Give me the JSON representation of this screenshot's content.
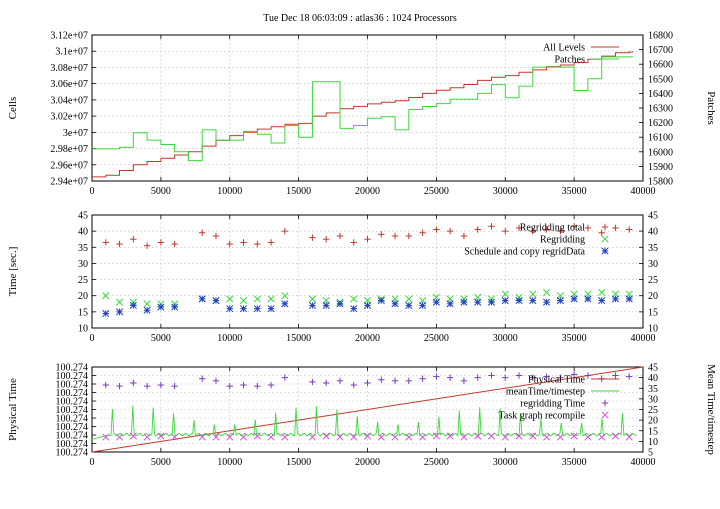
{
  "title": "Tue Dec 18 06:03:09 : atlas36 : 1024 Processors",
  "colors": {
    "red": "#c0392b",
    "green": "#3bd93b",
    "blue": "#1f3fbf",
    "purple": "#7a3fbf",
    "magenta": "#d84fd8",
    "lightgreen": "#7fe07f"
  },
  "chart_data": [
    {
      "type": "line",
      "xlim": [
        0,
        40000
      ],
      "xticks": [
        0,
        5000,
        10000,
        15000,
        20000,
        25000,
        30000,
        35000,
        40000
      ],
      "ylabel": "Cells",
      "ylim": [
        29400000,
        31200000
      ],
      "yticks": [
        29400000,
        29600000,
        29800000,
        30000000,
        30200000,
        30400000,
        30600000,
        30800000,
        31000000,
        31200000
      ],
      "ytick_labels": [
        "2.94e+07",
        "2.96e+07",
        "2.98e+07",
        "3e+07",
        "3.02e+07",
        "3.04e+07",
        "3.06e+07",
        "3.08e+07",
        "3.1e+07",
        "3.12e+07"
      ],
      "y2label": "Patches",
      "y2lim": [
        15800,
        16800
      ],
      "y2ticks": [
        15800,
        15900,
        16000,
        16100,
        16200,
        16300,
        16400,
        16500,
        16600,
        16700,
        16800
      ],
      "legend": "top-right",
      "series": [
        {
          "name": "All Levels",
          "axis": "y",
          "color": "#c0392b",
          "step": true,
          "x": [
            0,
            1000,
            2000,
            3000,
            4000,
            5000,
            6000,
            7000,
            8000,
            9000,
            10000,
            11000,
            12000,
            13000,
            14000,
            15000,
            16000,
            17000,
            18000,
            19000,
            20000,
            21000,
            22000,
            23000,
            24000,
            25000,
            26000,
            27000,
            28000,
            29000,
            30000,
            31000,
            32000,
            33000,
            34000,
            35000,
            36000,
            37000,
            38000,
            39000
          ],
          "y": [
            29450000,
            29470000,
            29530000,
            29600000,
            29640000,
            29680000,
            29720000,
            29760000,
            29830000,
            29900000,
            29960000,
            30000000,
            30040000,
            30070000,
            30100000,
            30110000,
            30200000,
            30240000,
            30290000,
            30320000,
            30350000,
            30370000,
            30390000,
            30430000,
            30480000,
            30520000,
            30550000,
            30590000,
            30640000,
            30680000,
            30700000,
            30740000,
            30770000,
            30810000,
            30830000,
            30860000,
            30900000,
            30940000,
            30980000,
            30990000
          ]
        },
        {
          "name": "Patches",
          "axis": "y2",
          "color": "#3bd93b",
          "step": true,
          "x": [
            0,
            1000,
            2000,
            3000,
            4000,
            5000,
            6000,
            7000,
            8000,
            9000,
            10000,
            11000,
            12000,
            13000,
            14000,
            15000,
            16000,
            17000,
            18000,
            19000,
            20000,
            21000,
            22000,
            23000,
            24000,
            25000,
            26000,
            27000,
            28000,
            29000,
            30000,
            31000,
            32000,
            33000,
            34000,
            35000,
            36000,
            37000,
            38000,
            39000
          ],
          "y": [
            16020,
            16020,
            16030,
            16130,
            16080,
            16050,
            16000,
            15940,
            16150,
            16080,
            16080,
            16140,
            16120,
            16060,
            16180,
            16100,
            16480,
            16480,
            16160,
            16180,
            16230,
            16240,
            16150,
            16290,
            16310,
            16330,
            16360,
            16360,
            16400,
            16460,
            16370,
            16450,
            16580,
            16580,
            16580,
            16420,
            16500,
            16650,
            16650,
            16650
          ]
        }
      ]
    },
    {
      "type": "scatter",
      "xlim": [
        0,
        40000
      ],
      "xticks": [
        0,
        5000,
        10000,
        15000,
        20000,
        25000,
        30000,
        35000,
        40000
      ],
      "ylabel": "Time [sec.]",
      "ylim": [
        10,
        45
      ],
      "yticks": [
        10,
        15,
        20,
        25,
        30,
        35,
        40,
        45
      ],
      "y2lim": [
        10,
        45
      ],
      "y2ticks": [
        10,
        15,
        20,
        25,
        30,
        35,
        40,
        45
      ],
      "legend": "top-right",
      "series": [
        {
          "name": "Regridding total",
          "marker": "plus",
          "color": "#c0392b",
          "x": [
            1000,
            2000,
            3000,
            4000,
            5000,
            6000,
            8000,
            9000,
            10000,
            11000,
            12000,
            13000,
            14000,
            16000,
            17000,
            18000,
            19000,
            20000,
            21000,
            22000,
            23000,
            24000,
            25000,
            26000,
            27000,
            28000,
            29000,
            30000,
            31000,
            32000,
            33000,
            34000,
            35000,
            36000,
            37000,
            38000,
            39000
          ],
          "y": [
            36.5,
            36,
            37.5,
            35.5,
            36.5,
            36,
            39.5,
            38.5,
            36,
            36.5,
            36,
            36.5,
            40,
            38,
            37.5,
            38.5,
            36.5,
            37.5,
            39,
            38.5,
            38.5,
            39.5,
            40.5,
            40,
            38.5,
            40.5,
            41.5,
            40,
            41,
            40,
            40.5,
            40,
            41.5,
            41,
            39.5,
            41,
            40.5
          ]
        },
        {
          "name": "Regridding",
          "marker": "cross",
          "color": "#3bd93b",
          "x": [
            1000,
            2000,
            3000,
            4000,
            5000,
            6000,
            8000,
            9000,
            10000,
            11000,
            12000,
            13000,
            14000,
            16000,
            17000,
            18000,
            19000,
            20000,
            21000,
            22000,
            23000,
            24000,
            25000,
            26000,
            27000,
            28000,
            29000,
            30000,
            31000,
            32000,
            33000,
            34000,
            35000,
            36000,
            37000,
            38000,
            39000
          ],
          "y": [
            20,
            18,
            18,
            17.5,
            17.5,
            17.5,
            19,
            18.5,
            19,
            18.5,
            19,
            19,
            20,
            19,
            18.5,
            18,
            19,
            18.5,
            19,
            19,
            19,
            18.5,
            19.5,
            19,
            19,
            19.5,
            19,
            20.5,
            19.5,
            20.5,
            21,
            20,
            20.5,
            20.5,
            21,
            20.5,
            20.5
          ]
        },
        {
          "name": "Schedule and copy regridData",
          "marker": "star",
          "color": "#1f3fbf",
          "x": [
            1000,
            2000,
            3000,
            4000,
            5000,
            6000,
            8000,
            9000,
            10000,
            11000,
            12000,
            13000,
            14000,
            16000,
            17000,
            18000,
            19000,
            20000,
            21000,
            22000,
            23000,
            24000,
            25000,
            26000,
            27000,
            28000,
            29000,
            30000,
            31000,
            32000,
            33000,
            34000,
            35000,
            36000,
            37000,
            38000,
            39000
          ],
          "y": [
            14.5,
            15,
            17,
            15.5,
            16.5,
            16.5,
            19,
            18.5,
            16,
            16,
            16,
            16,
            17.5,
            17,
            17,
            17.5,
            16,
            17,
            18.5,
            17.5,
            17,
            17,
            18,
            17.5,
            18,
            18,
            18,
            18.5,
            18.5,
            18.5,
            18,
            18.5,
            19,
            19,
            18.5,
            19,
            19
          ]
        }
      ]
    },
    {
      "type": "line",
      "xlim": [
        0,
        40000
      ],
      "xticks": [
        0,
        5000,
        10000,
        15000,
        20000,
        25000,
        30000,
        35000,
        40000
      ],
      "ylabel": "Physical Time",
      "ylim": [
        0,
        10
      ],
      "ytick_labels": [
        "100.274",
        "100.274",
        "100.274",
        "100.274",
        "100.274",
        "100.274",
        "100.274",
        "100.274",
        "100.274",
        "100.274",
        "100.274"
      ],
      "y2label": "Mean Time/timestep",
      "y2lim": [
        5,
        45
      ],
      "y2ticks": [
        5,
        10,
        15,
        20,
        25,
        30,
        35,
        40,
        45
      ],
      "legend": "top-right",
      "series": [
        {
          "name": "Physical Time",
          "axis": "y",
          "color": "#c0392b",
          "x": [
            0,
            40000
          ],
          "y": [
            0,
            10
          ]
        },
        {
          "name": "meanTime/timestep",
          "axis": "y2",
          "color": "#3bd93b",
          "x": [],
          "y": []
        },
        {
          "name": "regridding Time",
          "axis": "y2",
          "marker": "plus",
          "color": "#7a3fbf",
          "x": [
            1000,
            2000,
            3000,
            4000,
            5000,
            6000,
            8000,
            9000,
            10000,
            11000,
            12000,
            13000,
            14000,
            16000,
            17000,
            18000,
            19000,
            20000,
            21000,
            22000,
            23000,
            24000,
            25000,
            26000,
            27000,
            28000,
            29000,
            30000,
            31000,
            32000,
            33000,
            34000,
            35000,
            36000,
            37000,
            38000,
            39000
          ],
          "y": [
            36.5,
            36,
            37.5,
            36,
            36.5,
            36,
            39.5,
            38.5,
            36,
            36.5,
            36,
            36.5,
            40,
            38,
            37.5,
            38.5,
            36.5,
            37.5,
            39,
            38.5,
            38.5,
            39.5,
            40.5,
            40,
            38.5,
            40,
            41,
            40,
            41,
            40,
            40.5,
            40,
            41.5,
            41,
            39.5,
            41,
            40.5
          ]
        },
        {
          "name": "Task graph recompile",
          "axis": "y2",
          "marker": "cross",
          "color": "#d84fd8",
          "x": [
            1000,
            2000,
            3000,
            4000,
            5000,
            6000,
            8000,
            9000,
            10000,
            11000,
            12000,
            13000,
            14000,
            16000,
            17000,
            18000,
            19000,
            20000,
            21000,
            22000,
            23000,
            24000,
            25000,
            26000,
            27000,
            28000,
            29000,
            30000,
            31000,
            32000,
            33000,
            34000,
            35000,
            36000,
            37000,
            38000,
            39000
          ],
          "y": [
            12,
            12,
            12.5,
            12,
            12.5,
            12,
            12,
            12,
            12,
            12,
            12.5,
            12,
            12,
            12,
            12.5,
            12,
            12,
            12.5,
            12,
            12,
            12,
            12,
            12.5,
            12.5,
            12,
            12.5,
            12.5,
            12,
            12.5,
            12.5,
            12,
            12,
            12.5,
            12,
            12,
            12.5,
            12
          ]
        }
      ]
    }
  ]
}
